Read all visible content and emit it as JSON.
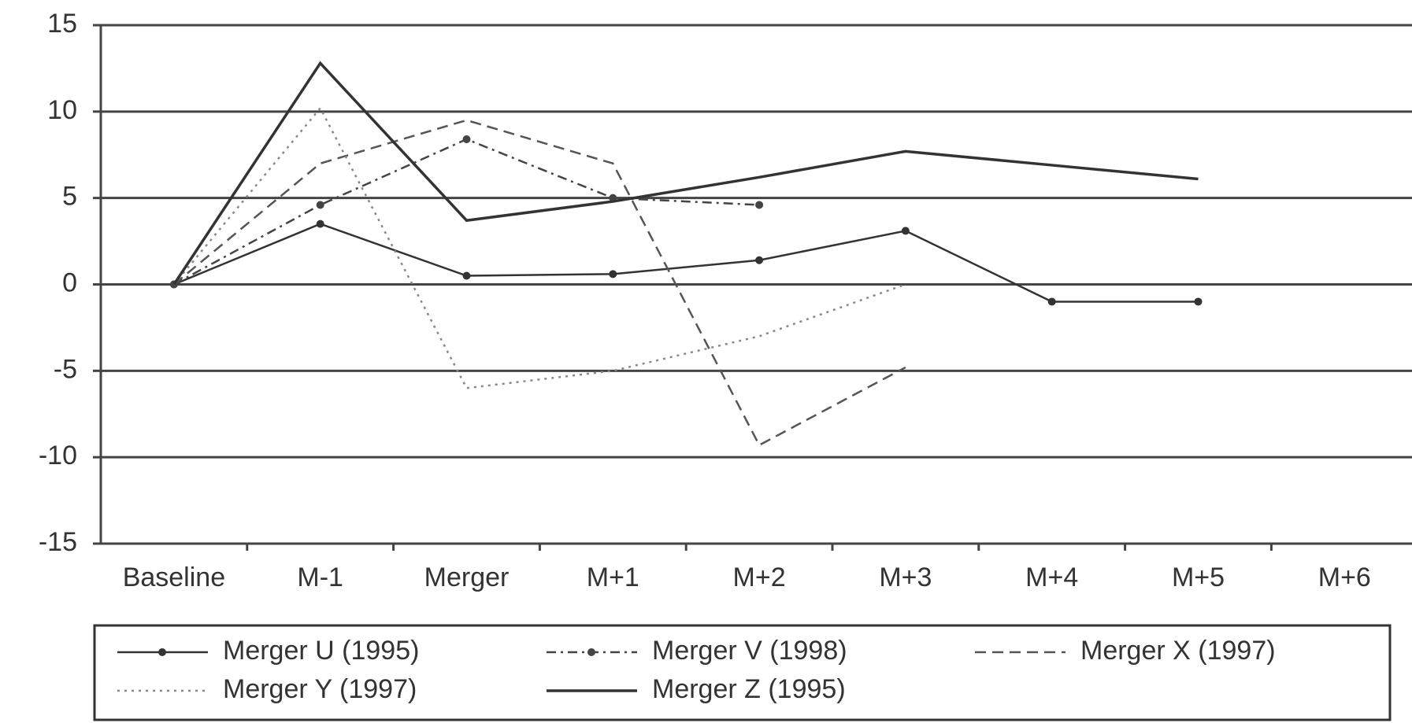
{
  "chart_data": {
    "type": "line",
    "categories": [
      "Baseline",
      "M-1",
      "Merger",
      "M+1",
      "M+2",
      "M+3",
      "M+4",
      "M+5",
      "M+6"
    ],
    "series": [
      {
        "name": "Merger U (1995)",
        "color": "#333333",
        "dash": "solid",
        "marker": true,
        "values": [
          0,
          3.5,
          0.5,
          0.6,
          1.4,
          3.1,
          -1,
          -1,
          null
        ]
      },
      {
        "name": "Merger V (1998)",
        "color": "#444444",
        "dash": "dashdot",
        "marker": true,
        "values": [
          0,
          4.6,
          8.4,
          5,
          4.6,
          null,
          null,
          null,
          null
        ]
      },
      {
        "name": "Merger X (1997)",
        "color": "#555555",
        "dash": "dashed",
        "marker": false,
        "values": [
          0,
          7,
          9.5,
          7,
          -9.3,
          -4.8,
          null,
          null,
          null
        ]
      },
      {
        "name": "Merger Y (1997)",
        "color": "#888888",
        "dash": "dotted",
        "marker": false,
        "values": [
          0,
          10.2,
          -6,
          -5,
          -3,
          0,
          null,
          null,
          null
        ]
      },
      {
        "name": "Merger Z (1995)",
        "color": "#333333",
        "dash": "solid",
        "marker": false,
        "values": [
          0,
          12.8,
          3.7,
          4.8,
          6.2,
          7.7,
          6.9,
          6.1,
          null
        ]
      }
    ],
    "ylim": [
      -15,
      15
    ],
    "yticks": [
      -15,
      -10,
      -5,
      0,
      5,
      10,
      15
    ],
    "grid": true,
    "legend": "bottom"
  }
}
